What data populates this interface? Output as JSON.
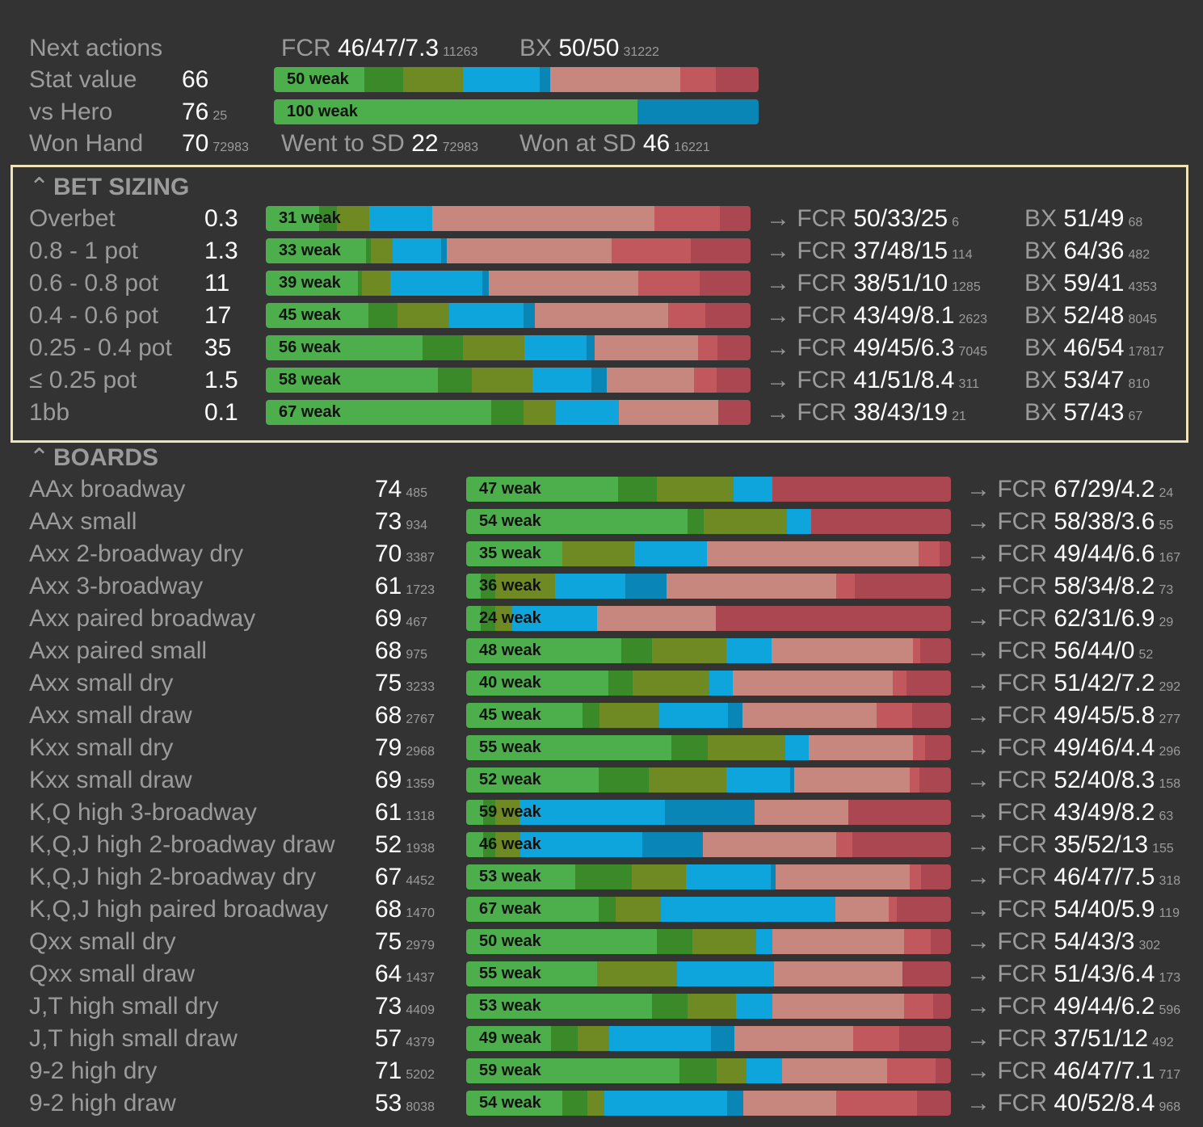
{
  "colors": {
    "green": "#4caf4c",
    "darkgreen": "#3a8a2a",
    "olive": "#6f8a22",
    "blue": "#0ea5dc",
    "darkblue": "#0a86b6",
    "pink": "#c8877e",
    "red": "#c0585e",
    "darkred": "#ab4750"
  },
  "summary": {
    "next_actions_label": "Next actions",
    "next_fcr_key": "FCR",
    "next_fcr_value": "46/47/7.3",
    "next_fcr_count": "11263",
    "next_bx_key": "BX",
    "next_bx_value": "50/50",
    "next_bx_count": "31222",
    "stat_value_label": "Stat value",
    "stat_value": "66",
    "stat_bar_label": "50 weak",
    "stat_bar": [
      16.8,
      7.3,
      11.0,
      14.3,
      2.0,
      24.2,
      6.5,
      8.0
    ],
    "vs_hero_label": "vs Hero",
    "vs_hero_value": "76",
    "vs_hero_count": "25",
    "vs_hero_bar_label": "100 weak",
    "vs_hero_bar": [
      75,
      25
    ],
    "won_hand_label": "Won Hand",
    "won_hand_value": "70",
    "won_hand_count": "72983",
    "went_sd_key": "Went to SD",
    "went_sd_value": "22",
    "went_sd_count": "72983",
    "won_sd_key": "Won at SD",
    "won_sd_value": "46",
    "won_sd_count": "16221"
  },
  "bet_sizing": {
    "title": "BET SIZING",
    "rows": [
      {
        "label": "Overbet",
        "value": "0.3",
        "bar_label": "31 weak",
        "segs": [
          10.5,
          3.5,
          6.3,
          12.3,
          0,
          43.7,
          12.8,
          6.0
        ],
        "fcr": "50/33/25",
        "fcr_count": "6",
        "bx": "51/49",
        "bx_count": "68"
      },
      {
        "label": "0.8 - 1 pot",
        "value": "1.3",
        "bar_label": "33 weak",
        "segs": [
          20.7,
          1.0,
          4.5,
          10.0,
          1.1,
          34.0,
          16.4,
          12.3
        ],
        "fcr": "37/48/15",
        "fcr_count": "114",
        "bx": "64/36",
        "bx_count": "482"
      },
      {
        "label": "0.6 - 0.8 pot",
        "value": "11",
        "bar_label": "39 weak",
        "segs": [
          19.0,
          0.8,
          5.8,
          19.0,
          1.4,
          30.8,
          12.7,
          10.5
        ],
        "fcr": "38/51/10",
        "fcr_count": "1285",
        "bx": "59/41",
        "bx_count": "4353"
      },
      {
        "label": "0.4 - 0.6 pot",
        "value": "17",
        "bar_label": "45 weak",
        "segs": [
          21.2,
          6.0,
          10.6,
          15.4,
          2.3,
          27.5,
          7.7,
          9.3
        ],
        "fcr": "43/49/8.1",
        "fcr_count": "2623",
        "bx": "52/48",
        "bx_count": "8045"
      },
      {
        "label": "0.25 - 0.4 pot",
        "value": "35",
        "bar_label": "56 weak",
        "segs": [
          32.3,
          8.4,
          12.7,
          12.7,
          1.8,
          21.3,
          4.0,
          6.8
        ],
        "fcr": "49/45/6.3",
        "fcr_count": "7045",
        "bx": "46/54",
        "bx_count": "17817"
      },
      {
        "label": "≤ 0.25 pot",
        "value": "1.5",
        "bar_label": "58 weak",
        "segs": [
          35.5,
          7.0,
          12.5,
          12.2,
          3.2,
          18.0,
          4.6,
          7.0
        ],
        "fcr": "41/51/8.4",
        "fcr_count": "311",
        "bx": "53/47",
        "bx_count": "810"
      },
      {
        "label": "1bb",
        "value": "0.1",
        "bar_label": "67 weak",
        "segs": [
          46.5,
          6.7,
          6.7,
          13.0,
          0,
          20.5,
          0,
          6.6
        ],
        "fcr": "38/43/19",
        "fcr_count": "21",
        "bx": "57/43",
        "bx_count": "67"
      }
    ]
  },
  "boards": {
    "title": "BOARDS",
    "rows": [
      {
        "label": "AAx broadway",
        "value": "74",
        "count": "485",
        "bar_label": "47 weak",
        "segs": [
          31.3,
          8.0,
          15.8,
          8.0,
          0,
          0,
          0,
          36.9
        ],
        "fcr": "67/29/4.2",
        "fcr_count": "24"
      },
      {
        "label": "AAx small",
        "value": "73",
        "count": "934",
        "bar_label": "54 weak",
        "segs": [
          45.6,
          3.4,
          17.1,
          5.0,
          0,
          0,
          0,
          28.9
        ],
        "fcr": "58/38/3.6",
        "fcr_count": "55"
      },
      {
        "label": "Axx 2-broadway dry",
        "value": "70",
        "count": "3387",
        "bar_label": "35 weak",
        "segs": [
          19.9,
          0,
          14.8,
          15.0,
          0,
          43.7,
          4.2,
          2.4
        ],
        "fcr": "49/44/6.6",
        "fcr_count": "167"
      },
      {
        "label": "Axx 3-broadway",
        "value": "61",
        "count": "1723",
        "bar_label": "36 weak",
        "segs": [
          3.0,
          3.0,
          12.4,
          14.5,
          8.5,
          35.0,
          3.7,
          19.9
        ],
        "fcr": "58/34/8.2",
        "fcr_count": "73"
      },
      {
        "label": "Axx paired broadway",
        "value": "69",
        "count": "467",
        "bar_label": "24 weak",
        "segs": [
          3.0,
          3.0,
          3.5,
          17.5,
          0,
          24.5,
          0,
          48.5
        ],
        "fcr": "62/31/6.9",
        "fcr_count": "29"
      },
      {
        "label": "Axx paired small",
        "value": "68",
        "count": "975",
        "bar_label": "48 weak",
        "segs": [
          32.0,
          6.3,
          15.4,
          9.3,
          0,
          29.2,
          1.5,
          6.3
        ],
        "fcr": "56/44/0",
        "fcr_count": "52"
      },
      {
        "label": "Axx small dry",
        "value": "75",
        "count": "3233",
        "bar_label": "40 weak",
        "segs": [
          29.3,
          5.0,
          15.8,
          4.9,
          0,
          33.0,
          2.8,
          9.2
        ],
        "fcr": "51/42/7.2",
        "fcr_count": "292"
      },
      {
        "label": "Axx small draw",
        "value": "68",
        "count": "2767",
        "bar_label": "45 weak",
        "segs": [
          24.0,
          3.5,
          12.3,
          14.2,
          3.0,
          27.7,
          7.3,
          8.0
        ],
        "fcr": "49/45/5.8",
        "fcr_count": "277"
      },
      {
        "label": "Kxx small dry",
        "value": "79",
        "count": "2968",
        "bar_label": "55 weak",
        "segs": [
          42.3,
          7.5,
          16.0,
          4.8,
          0,
          21.6,
          2.4,
          5.4
        ],
        "fcr": "49/46/4.4",
        "fcr_count": "296"
      },
      {
        "label": "Kxx small draw",
        "value": "69",
        "count": "1359",
        "bar_label": "52 weak",
        "segs": [
          27.3,
          10.4,
          16.0,
          13.2,
          0.8,
          23.8,
          2.0,
          6.5
        ],
        "fcr": "52/40/8.3",
        "fcr_count": "158"
      },
      {
        "label": "K,Q high 3-broadway",
        "value": "61",
        "count": "1318",
        "bar_label": "59 weak",
        "segs": [
          3.5,
          2.5,
          5.0,
          30.0,
          18.5,
          19.3,
          0,
          21.2
        ],
        "fcr": "43/49/8.2",
        "fcr_count": "63"
      },
      {
        "label": "K,Q,J high 2-broadway draw",
        "value": "52",
        "count": "1938",
        "bar_label": "46 weak",
        "segs": [
          3.5,
          2.5,
          5.0,
          25.0,
          12.3,
          27.2,
          3.3,
          20.2
        ],
        "fcr": "35/52/13",
        "fcr_count": "155"
      },
      {
        "label": "K,Q,J high 2-broadway dry",
        "value": "67",
        "count": "4452",
        "bar_label": "53 weak",
        "segs": [
          23.0,
          12.0,
          11.3,
          18.0,
          1.0,
          28.3,
          2.3,
          6.3
        ],
        "fcr": "46/47/7.5",
        "fcr_count": "318"
      },
      {
        "label": "K,Q,J high paired broadway",
        "value": "68",
        "count": "1470",
        "bar_label": "67 weak",
        "segs": [
          27.3,
          3.5,
          9.3,
          36.0,
          0,
          11.0,
          1.7,
          11.2
        ],
        "fcr": "54/40/5.9",
        "fcr_count": "119"
      },
      {
        "label": "Qxx small dry",
        "value": "75",
        "count": "2979",
        "bar_label": "50 weak",
        "segs": [
          39.3,
          7.3,
          13.2,
          3.3,
          0,
          27.2,
          5.5,
          4.2
        ],
        "fcr": "54/43/3",
        "fcr_count": "302"
      },
      {
        "label": "Qxx small draw",
        "value": "64",
        "count": "1437",
        "bar_label": "55 weak",
        "segs": [
          27.0,
          0,
          16.5,
          20.0,
          0,
          26.5,
          0,
          10.0
        ],
        "fcr": "51/43/6.4",
        "fcr_count": "173"
      },
      {
        "label": "J,T high small dry",
        "value": "73",
        "count": "4409",
        "bar_label": "53 weak",
        "segs": [
          38.3,
          7.3,
          10.0,
          7.5,
          0,
          27.3,
          6.0,
          3.6
        ],
        "fcr": "49/44/6.2",
        "fcr_count": "596"
      },
      {
        "label": "J,T high small draw",
        "value": "57",
        "count": "4379",
        "bar_label": "49 weak",
        "segs": [
          17.5,
          5.5,
          6.5,
          21.0,
          4.8,
          24.6,
          9.5,
          10.6
        ],
        "fcr": "37/51/12",
        "fcr_count": "492"
      },
      {
        "label": "9-2 high dry",
        "value": "71",
        "count": "5202",
        "bar_label": "59 weak",
        "segs": [
          44.0,
          7.6,
          6.2,
          7.3,
          0,
          21.7,
          10.0,
          3.2
        ],
        "fcr": "46/47/7.1",
        "fcr_count": "717"
      },
      {
        "label": "9-2 high draw",
        "value": "53",
        "count": "8038",
        "bar_label": "54 weak",
        "segs": [
          19.8,
          5.2,
          3.5,
          25.3,
          3.3,
          19.2,
          16.7,
          7.0
        ],
        "fcr": "40/52/8.4",
        "fcr_count": "968"
      }
    ]
  },
  "labels": {
    "arrow": "→",
    "fcr_key": "FCR",
    "bx_key": "BX"
  }
}
